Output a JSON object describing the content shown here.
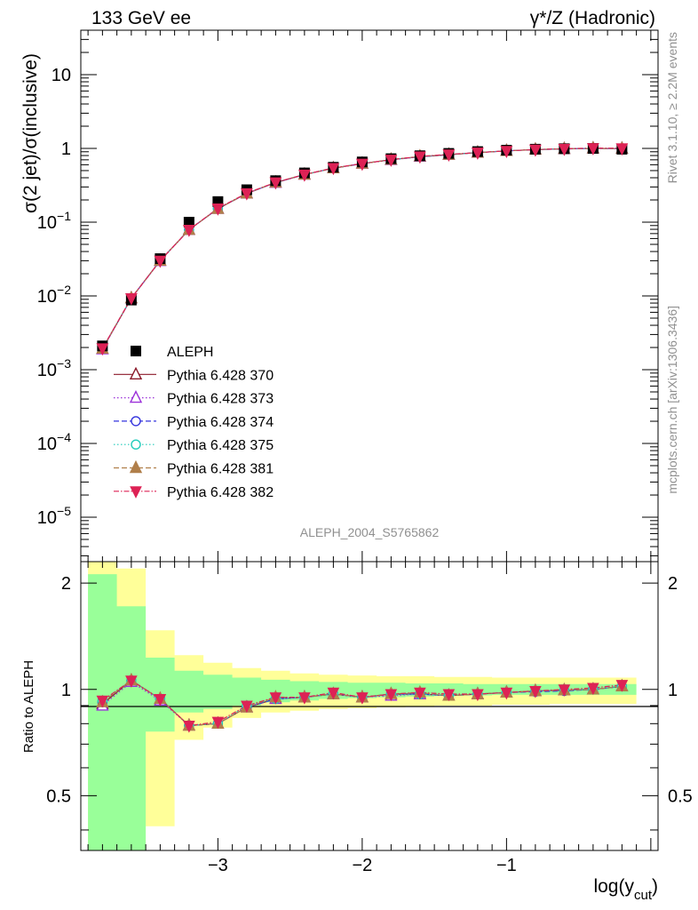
{
  "header": {
    "left": "133 GeV ee",
    "right": "γ*/Z (Hadronic)"
  },
  "side": {
    "rivet": "Rivet 3.1.10, ≥ 2.2M events",
    "mcplots": "mcplots.cern.ch [arXiv:1306.3436]"
  },
  "analysis_tag": "ALEPH_2004_S5765862",
  "axes": {
    "main_ylabel": "σ(2 jet)/σ(inclusive)",
    "ratio_ylabel": "Ratio to ALEPH",
    "xlabel_main": "log(y",
    "xlabel_sub": "cut",
    "xlabel_end": ")",
    "main_yticks": [
      {
        "value": 10,
        "base": "10",
        "exp": ""
      },
      {
        "value": 1,
        "base": "1",
        "exp": ""
      },
      {
        "value": 0.1,
        "base": "10",
        "exp": "−1"
      },
      {
        "value": 0.01,
        "base": "10",
        "exp": "−2"
      },
      {
        "value": 0.001,
        "base": "10",
        "exp": "−3"
      },
      {
        "value": 0.0001,
        "base": "10",
        "exp": "−4"
      },
      {
        "value": 1e-05,
        "base": "10",
        "exp": "−5"
      }
    ],
    "ratio_yticks": [
      {
        "value": 2,
        "label": "2"
      },
      {
        "value": 1,
        "label": "1"
      },
      {
        "value": 0.5,
        "label": "0.5"
      }
    ],
    "xticks": [
      {
        "value": -3,
        "label": "−3"
      },
      {
        "value": -2,
        "label": "−2"
      },
      {
        "value": -1,
        "label": "−1"
      }
    ]
  },
  "legend": {
    "entries": [
      {
        "label": "ALEPH",
        "color": "#000000",
        "marker": "square-filled",
        "dash": ""
      },
      {
        "label": "Pythia 6.428 370",
        "color": "#8b1a2a",
        "marker": "triangle-open",
        "dash": ""
      },
      {
        "label": "Pythia 6.428 373",
        "color": "#9b30d9",
        "marker": "triangle-open",
        "dash": "1.5,2.5"
      },
      {
        "label": "Pythia 6.428 374",
        "color": "#3333dd",
        "marker": "circle-open",
        "dash": "6,3"
      },
      {
        "label": "Pythia 6.428 375",
        "color": "#22ccbb",
        "marker": "circle-open",
        "dash": "1.5,2.5"
      },
      {
        "label": "Pythia 6.428 381",
        "color": "#b07f4a",
        "marker": "triangle-filled",
        "dash": "6,3"
      },
      {
        "label": "Pythia 6.428 382",
        "color": "#dd2255",
        "marker": "triangle-down-filled",
        "dash": "6,2,1.5,2"
      }
    ]
  },
  "chart_data": {
    "type": "scatter",
    "xlabel": "log(y_cut)",
    "ylabel": "σ(2 jet)/σ(inclusive)",
    "xlim": [
      -3.95,
      0.05
    ],
    "ylim_main": [
      2.5e-06,
      40
    ],
    "ylim_ratio": [
      0.35,
      2.3
    ],
    "log_y_main": true,
    "log_y_ratio": true,
    "x": [
      -3.8,
      -3.6,
      -3.4,
      -3.2,
      -3.0,
      -2.8,
      -2.6,
      -2.4,
      -2.2,
      -2.0,
      -1.8,
      -1.6,
      -1.4,
      -1.2,
      -1.0,
      -0.8,
      -0.6,
      -0.4,
      -0.2
    ],
    "bin_edges": [
      -3.9,
      -3.7,
      -3.5,
      -3.3,
      -3.1,
      -2.9,
      -2.7,
      -2.5,
      -2.3,
      -2.1,
      -1.9,
      -1.7,
      -1.5,
      -1.3,
      -1.1,
      -0.9,
      -0.7,
      -0.5,
      -0.3,
      -0.1
    ],
    "data": {
      "name": "ALEPH",
      "values": [
        0.0021,
        0.0088,
        0.032,
        0.1,
        0.19,
        0.275,
        0.365,
        0.465,
        0.555,
        0.655,
        0.725,
        0.795,
        0.855,
        0.905,
        0.945,
        0.975,
        0.99,
        1.0,
        0.975
      ]
    },
    "mc_values": [
      0.0019,
      0.0093,
      0.029,
      0.077,
      0.15,
      0.245,
      0.34,
      0.44,
      0.535,
      0.625,
      0.7,
      0.775,
      0.83,
      0.88,
      0.925,
      0.96,
      0.985,
      1.0,
      0.995
    ],
    "ratio": {
      "Pythia 6.428 370": [
        0.91,
        1.06,
        0.94,
        0.79,
        0.8,
        0.89,
        0.94,
        0.95,
        0.97,
        0.95,
        0.97,
        0.97,
        0.96,
        0.97,
        0.98,
        0.99,
        0.995,
        1.0,
        1.02
      ],
      "Pythia 6.428 373": [
        0.9,
        1.05,
        0.93,
        0.79,
        0.8,
        0.89,
        0.94,
        0.95,
        0.97,
        0.95,
        0.96,
        0.97,
        0.96,
        0.97,
        0.98,
        0.99,
        0.995,
        1.0,
        1.02
      ],
      "Pythia 6.428 374": [
        0.92,
        1.06,
        0.94,
        0.79,
        0.8,
        0.89,
        0.94,
        0.95,
        0.97,
        0.95,
        0.97,
        0.97,
        0.96,
        0.97,
        0.98,
        0.985,
        0.99,
        1.0,
        1.02
      ],
      "Pythia 6.428 375": [
        0.93,
        1.06,
        0.94,
        0.79,
        0.8,
        0.9,
        0.94,
        0.95,
        0.97,
        0.95,
        0.97,
        0.97,
        0.96,
        0.97,
        0.98,
        0.99,
        0.995,
        1.0,
        1.02
      ],
      "Pythia 6.428 381": [
        0.92,
        1.06,
        0.94,
        0.79,
        0.8,
        0.89,
        0.95,
        0.95,
        0.97,
        0.95,
        0.97,
        0.98,
        0.96,
        0.97,
        0.98,
        0.99,
        0.995,
        1.0,
        1.02
      ],
      "Pythia 6.428 382": [
        0.93,
        1.06,
        0.94,
        0.79,
        0.81,
        0.9,
        0.95,
        0.95,
        0.98,
        0.95,
        0.97,
        0.98,
        0.97,
        0.97,
        0.98,
        0.99,
        1.0,
        1.01,
        1.03
      ]
    },
    "band_inner": {
      "lo": [
        0.34,
        0.34,
        0.76,
        0.86,
        0.88,
        0.9,
        0.92,
        0.93,
        0.94,
        0.945,
        0.95,
        0.955,
        0.96,
        0.962,
        0.965,
        0.965,
        0.965,
        0.965,
        0.965
      ],
      "hi": [
        2.12,
        1.72,
        1.23,
        1.13,
        1.1,
        1.08,
        1.065,
        1.055,
        1.05,
        1.045,
        1.045,
        1.04,
        1.04,
        1.035,
        1.035,
        1.035,
        1.035,
        1.035,
        1.035
      ]
    },
    "band_outer": {
      "lo": [
        0.34,
        0.34,
        0.41,
        0.72,
        0.78,
        0.83,
        0.86,
        0.87,
        0.88,
        0.885,
        0.89,
        0.895,
        0.9,
        0.9,
        0.905,
        0.905,
        0.91,
        0.91,
        0.91
      ],
      "hi": [
        2.3,
        2.2,
        1.47,
        1.25,
        1.19,
        1.15,
        1.13,
        1.11,
        1.1,
        1.095,
        1.09,
        1.09,
        1.085,
        1.085,
        1.08,
        1.08,
        1.08,
        1.08,
        1.08
      ]
    },
    "colors": {
      "band_inner": "#99ff99",
      "band_outer": "#ffff99"
    }
  }
}
